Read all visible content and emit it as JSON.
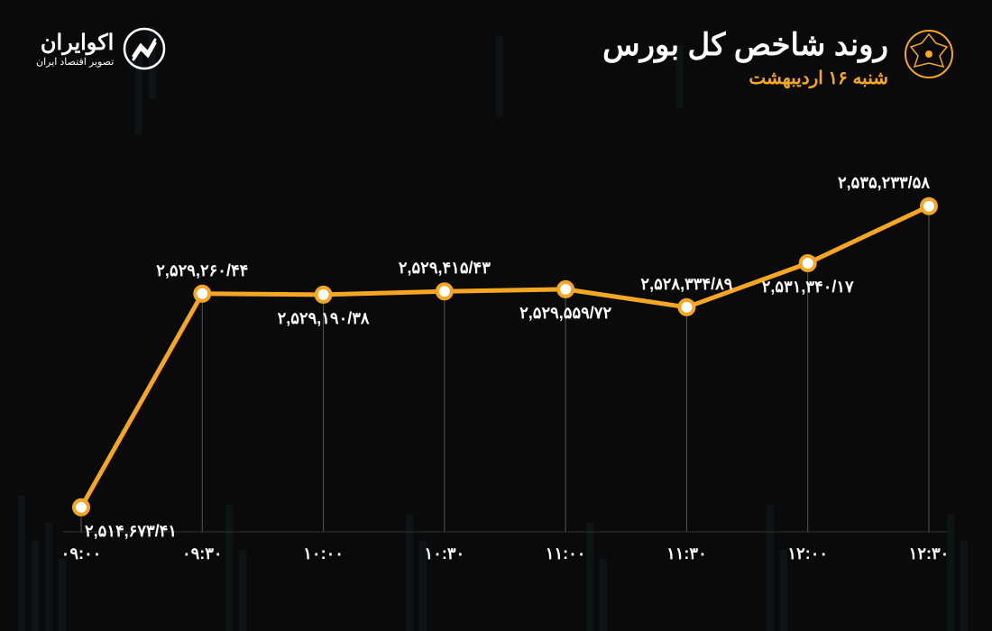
{
  "header": {
    "title": "روند شاخص کل بورس",
    "subtitle": "شنبه ۱۶ اردیبهشت"
  },
  "brand": {
    "name": "اکوایران",
    "sub": "تصویر اقتصاد ایران"
  },
  "chart": {
    "type": "line",
    "line_color": "#f5a623",
    "line_width": 5,
    "marker_fill": "#ffffff",
    "marker_stroke": "#f5a623",
    "marker_stroke_width": 4,
    "marker_radius": 8,
    "grid_color": "#333333",
    "background_color": "#0a0a0a",
    "label_color": "#ffffff",
    "label_fontsize": 18,
    "ylim_min": 2513000,
    "ylim_max": 2537000,
    "points": [
      {
        "x_label": "۰۹:۰۰",
        "value": 2514673.41,
        "value_label": "۲,۵۱۴,۶۷۳/۴۱",
        "label_pos": "below"
      },
      {
        "x_label": "۰۹:۳۰",
        "value": 2529260.44,
        "value_label": "۲,۵۲۹,۲۶۰/۴۴",
        "label_pos": "above"
      },
      {
        "x_label": "۱۰:۰۰",
        "value": 2529190.38,
        "value_label": "۲,۵۲۹,۱۹۰/۳۸",
        "label_pos": "below"
      },
      {
        "x_label": "۱۰:۳۰",
        "value": 2529415.43,
        "value_label": "۲,۵۲۹,۴۱۵/۴۳",
        "label_pos": "above"
      },
      {
        "x_label": "۱۱:۰۰",
        "value": 2529559.72,
        "value_label": "۲,۵۲۹,۵۵۹/۷۲",
        "label_pos": "below"
      },
      {
        "x_label": "۱۱:۳۰",
        "value": 2528334.89,
        "value_label": "۲,۵۲۸,۳۳۴/۸۹",
        "label_pos": "above"
      },
      {
        "x_label": "۱۲:۰۰",
        "value": 2531340.17,
        "value_label": "۲,۵۳۱,۳۴۰/۱۷",
        "label_pos": "below"
      },
      {
        "x_label": "۱۲:۳۰",
        "value": 2535233.58,
        "value_label": "۲,۵۳۵,۲۳۳/۵۸",
        "label_pos": "above"
      }
    ]
  }
}
